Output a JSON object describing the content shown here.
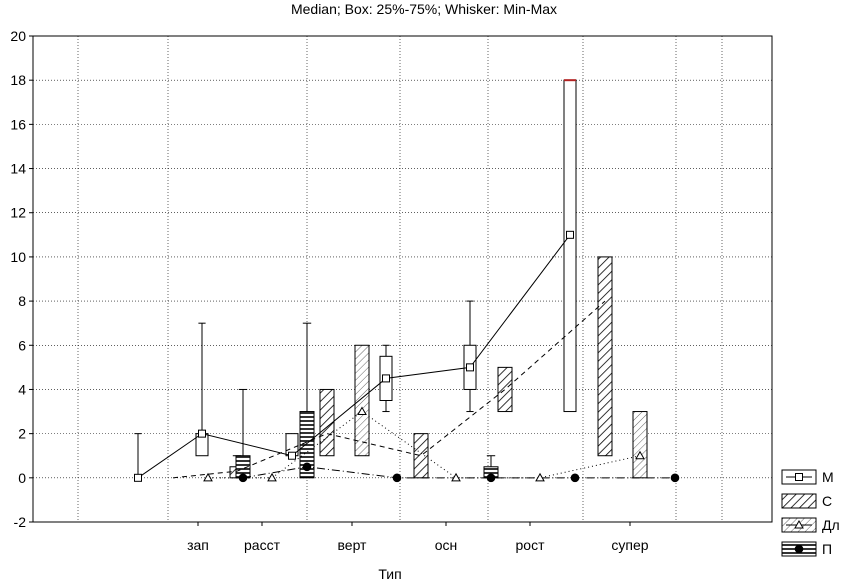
{
  "chart_data": {
    "type": "box",
    "title": "Median; Box: 25%-75%; Whisker: Min-Max",
    "xlabel": "Тип",
    "ylabel": "",
    "categories": [
      "зап",
      "расст",
      "верт",
      "осн",
      "рост",
      "супер"
    ],
    "ylim": [
      -2,
      20
    ],
    "yticks": [
      -2,
      0,
      2,
      4,
      6,
      8,
      10,
      12,
      14,
      16,
      18,
      20
    ],
    "grid": true,
    "legend_position": "right",
    "series": [
      {
        "name": "М",
        "line_style": "solid",
        "marker": "square",
        "fill": "plain",
        "boxes": [
          {
            "min": 0,
            "q1": 0,
            "median": 0,
            "q3": 0,
            "max": 2
          },
          {
            "min": 1,
            "q1": 1,
            "median": 2,
            "q3": 2,
            "max": 7
          },
          {
            "min": 1,
            "q1": 1,
            "median": 1,
            "q3": 2,
            "max": 2
          },
          {
            "min": 3,
            "q1": 3.5,
            "median": 4.5,
            "q3": 5.5,
            "max": 6
          },
          {
            "min": 3,
            "q1": 4,
            "median": 5,
            "q3": 6,
            "max": 8
          },
          {
            "min": 3,
            "q1": 3,
            "median": 11,
            "q3": 18,
            "max": 18
          }
        ]
      },
      {
        "name": "С",
        "line_style": "dashed",
        "marker": "none",
        "fill": "diagonal",
        "boxes": [
          {
            "min": 0,
            "q1": 0,
            "median": 0,
            "q3": 0,
            "max": 0
          },
          {
            "min": 0,
            "q1": 0,
            "median": 0.3,
            "q3": 0.5,
            "max": 1
          },
          {
            "min": 1,
            "q1": 1,
            "median": 2,
            "q3": 4,
            "max": 4
          },
          {
            "min": 0,
            "q1": 0,
            "median": 1,
            "q3": 2,
            "max": 2
          },
          {
            "min": 3,
            "q1": 3,
            "median": 4,
            "q3": 5,
            "max": 5
          },
          {
            "min": 1,
            "q1": 1,
            "median": 8,
            "q3": 10,
            "max": 10
          }
        ]
      },
      {
        "name": "Дл",
        "line_style": "dotted",
        "marker": "triangle",
        "fill": "diagonal",
        "boxes": [
          {
            "min": 0,
            "q1": 0,
            "median": 0,
            "q3": 0,
            "max": 0
          },
          {
            "min": 0,
            "q1": 0,
            "median": 0,
            "q3": 0,
            "max": 0
          },
          {
            "min": 1,
            "q1": 1,
            "median": 3,
            "q3": 6,
            "max": 6
          },
          {
            "min": 0,
            "q1": 0,
            "median": 0,
            "q3": 0,
            "max": 0
          },
          {
            "min": 0,
            "q1": 0,
            "median": 0,
            "q3": 0,
            "max": 0
          },
          {
            "min": 0,
            "q1": 0,
            "median": 1,
            "q3": 3,
            "max": 3
          }
        ]
      },
      {
        "name": "П",
        "line_style": "dash-dot",
        "marker": "circle",
        "fill": "horizontal",
        "boxes": [
          {
            "min": 0,
            "q1": 0,
            "median": 0,
            "q3": 1,
            "max": 4
          },
          {
            "min": 0,
            "q1": 0,
            "median": 0.5,
            "q3": 3,
            "max": 7
          },
          {
            "min": 0,
            "q1": 0,
            "median": 0,
            "q3": 0,
            "max": 0
          },
          {
            "min": 0,
            "q1": 0,
            "median": 0,
            "q3": 0.5,
            "max": 1
          },
          {
            "min": 0,
            "q1": 0,
            "median": 0,
            "q3": 0,
            "max": 0
          },
          {
            "min": 0,
            "q1": 0,
            "median": 0,
            "q3": 0,
            "max": 0
          }
        ]
      }
    ],
    "colors": {
      "median_line_accent": "#b22222",
      "grid": "#000000"
    }
  }
}
